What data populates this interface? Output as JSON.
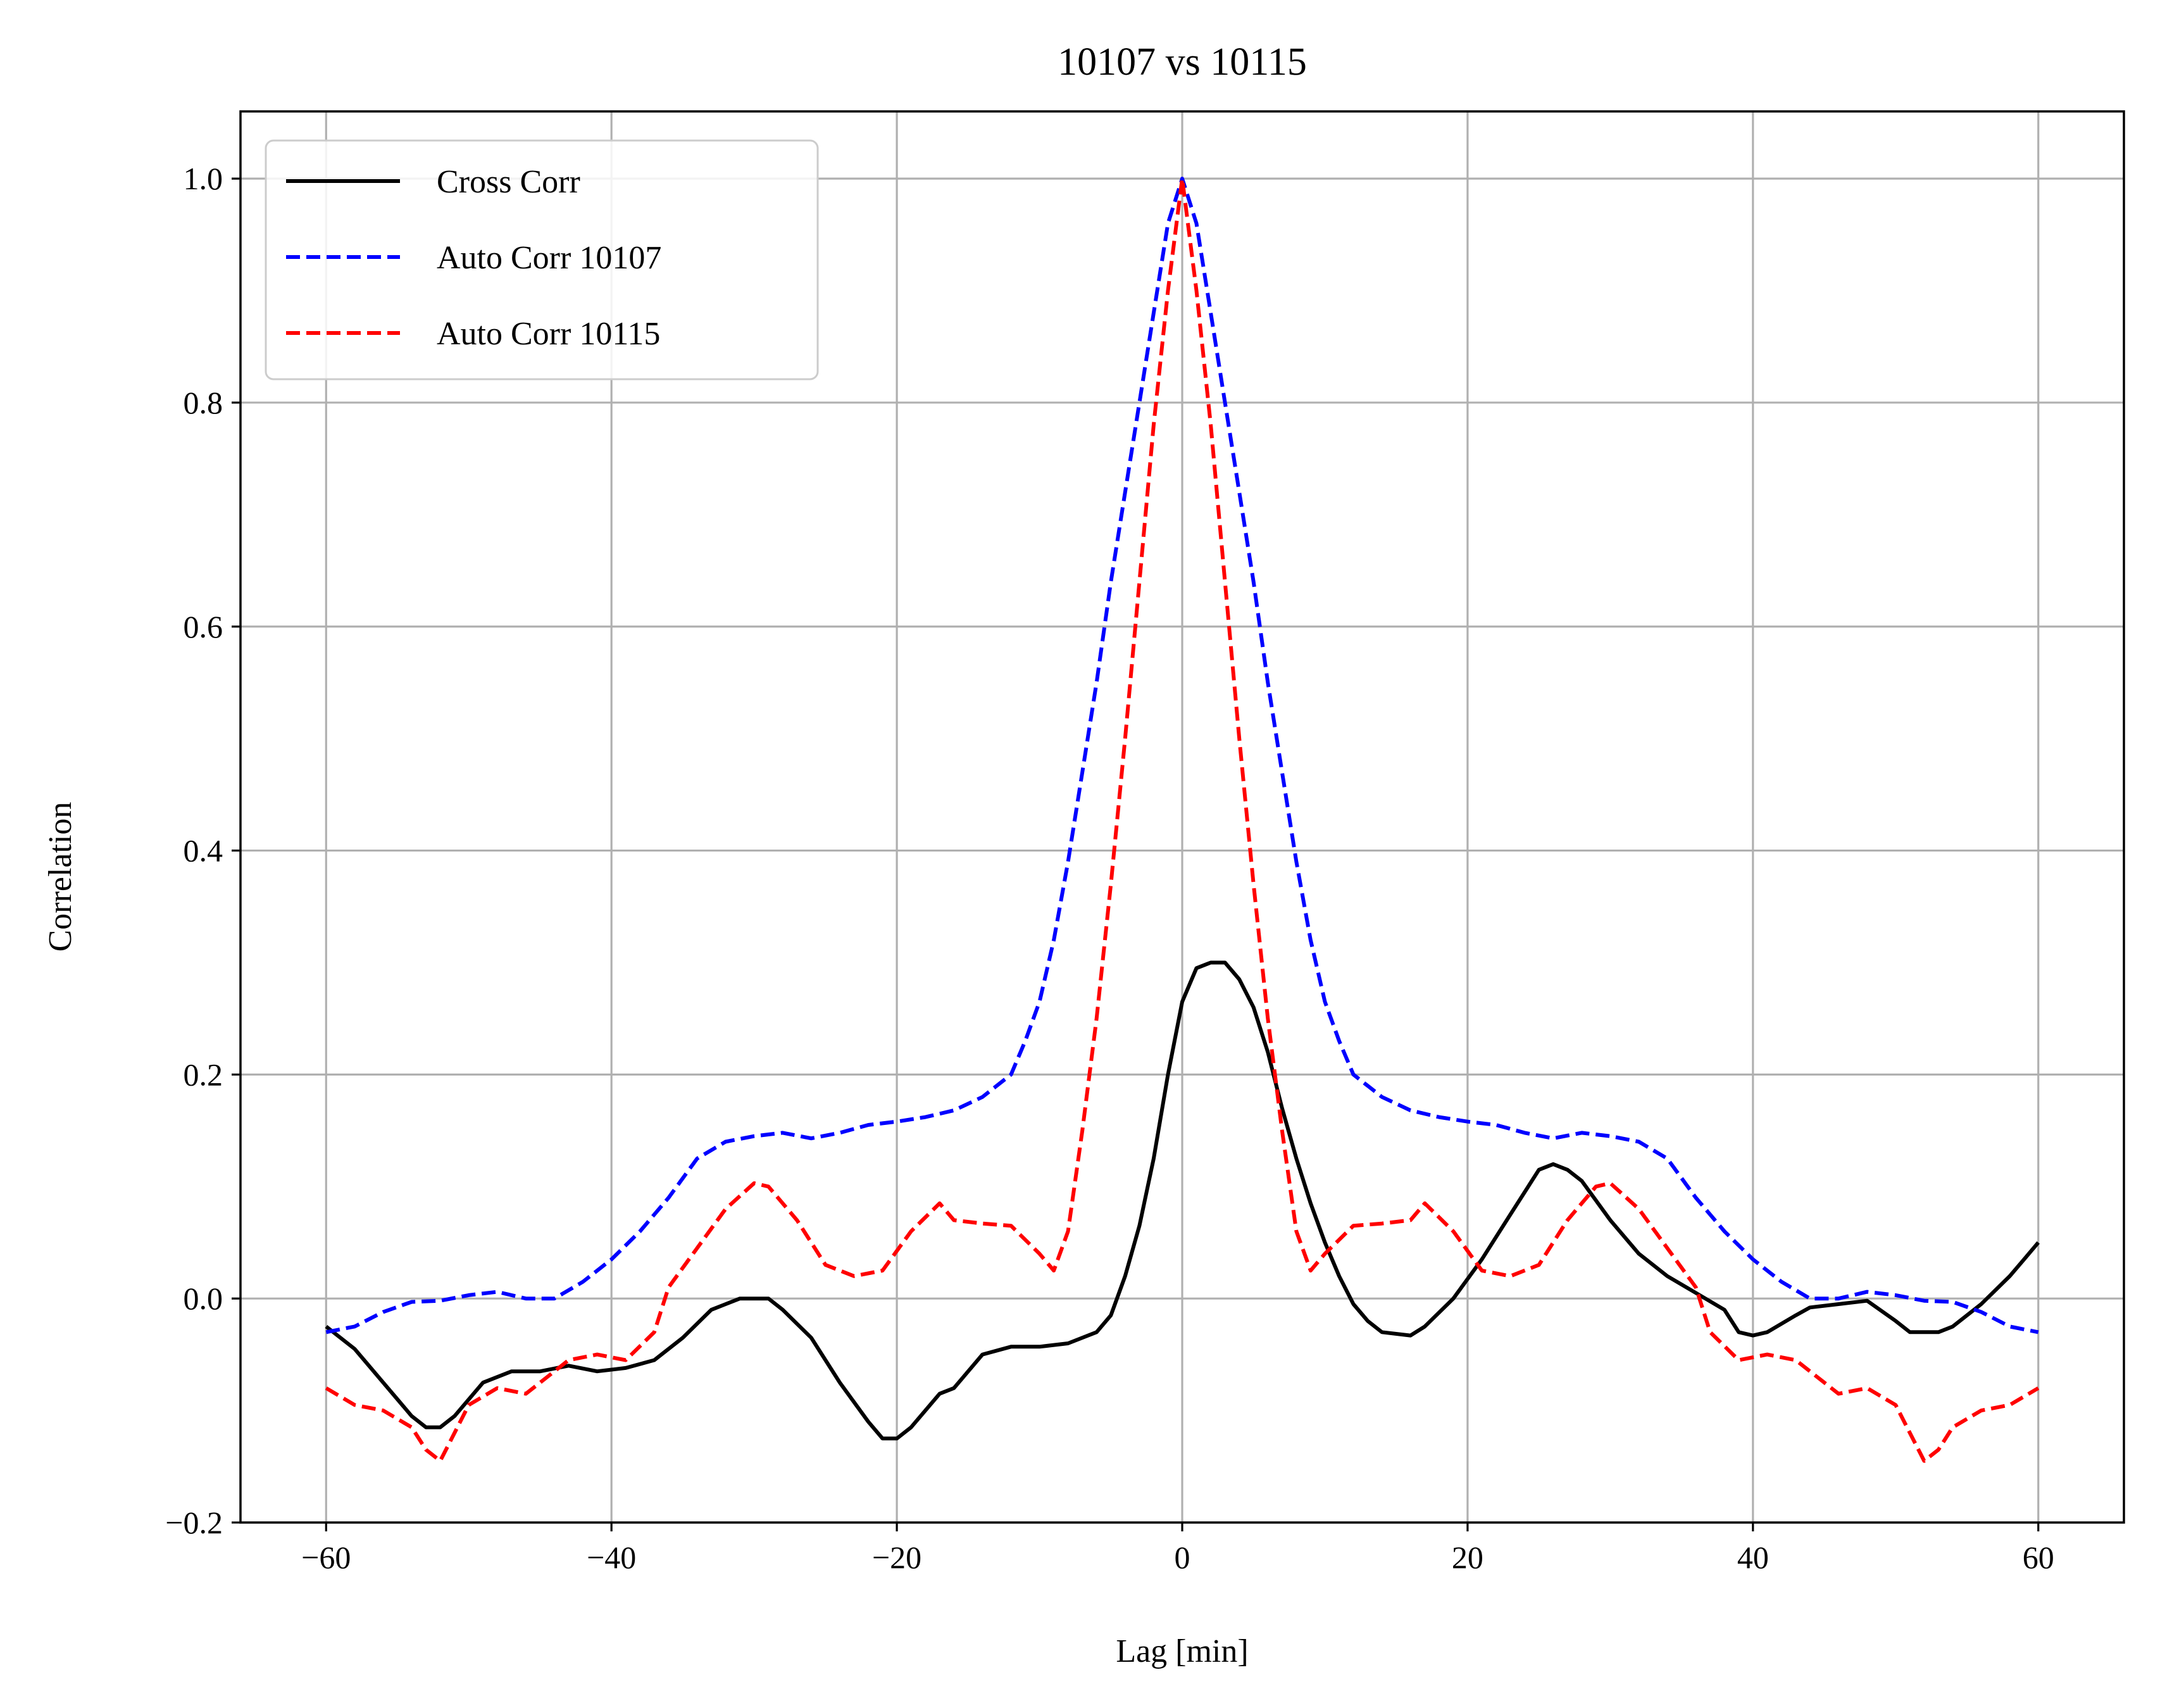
{
  "chart_data": {
    "type": "line",
    "title": "10107 vs 10115",
    "xlabel": "Lag [min]",
    "ylabel": "Correlation",
    "xlim": [
      -66,
      66
    ],
    "ylim": [
      -0.2,
      1.06
    ],
    "xticks": [
      -60,
      -40,
      -20,
      0,
      20,
      40,
      60
    ],
    "yticks": [
      -0.2,
      0.0,
      0.2,
      0.4,
      0.6,
      0.8,
      1.0
    ],
    "xtick_labels": [
      "−60",
      "−40",
      "−20",
      "0",
      "20",
      "40",
      "60"
    ],
    "ytick_labels": [
      "−0.2",
      "0.0",
      "0.2",
      "0.4",
      "0.6",
      "0.8",
      "1.0"
    ],
    "grid": true,
    "legend_position": "upper-left",
    "series": [
      {
        "name": "Cross Corr",
        "color": "#000000",
        "style": "solid",
        "points": [
          [
            -60,
            -0.025
          ],
          [
            -58,
            -0.045
          ],
          [
            -56,
            -0.075
          ],
          [
            -54,
            -0.105
          ],
          [
            -53,
            -0.115
          ],
          [
            -52,
            -0.115
          ],
          [
            -51,
            -0.105
          ],
          [
            -49,
            -0.075
          ],
          [
            -47,
            -0.065
          ],
          [
            -45,
            -0.065
          ],
          [
            -43,
            -0.06
          ],
          [
            -41,
            -0.065
          ],
          [
            -39,
            -0.062
          ],
          [
            -37,
            -0.055
          ],
          [
            -35,
            -0.035
          ],
          [
            -33,
            -0.01
          ],
          [
            -31,
            0.0
          ],
          [
            -29,
            0.0
          ],
          [
            -28,
            -0.01
          ],
          [
            -26,
            -0.035
          ],
          [
            -24,
            -0.075
          ],
          [
            -22,
            -0.11
          ],
          [
            -21,
            -0.125
          ],
          [
            -20,
            -0.125
          ],
          [
            -19,
            -0.115
          ],
          [
            -17,
            -0.085
          ],
          [
            -16,
            -0.08
          ],
          [
            -14,
            -0.05
          ],
          [
            -12,
            -0.043
          ],
          [
            -10,
            -0.043
          ],
          [
            -8,
            -0.04
          ],
          [
            -6,
            -0.03
          ],
          [
            -5,
            -0.015
          ],
          [
            -4,
            0.02
          ],
          [
            -3,
            0.065
          ],
          [
            -2,
            0.125
          ],
          [
            -1,
            0.2
          ],
          [
            0,
            0.265
          ],
          [
            1,
            0.295
          ],
          [
            2,
            0.3
          ],
          [
            3,
            0.3
          ],
          [
            4,
            0.285
          ],
          [
            5,
            0.26
          ],
          [
            6,
            0.22
          ],
          [
            7,
            0.17
          ],
          [
            8,
            0.125
          ],
          [
            9,
            0.085
          ],
          [
            10,
            0.05
          ],
          [
            11,
            0.02
          ],
          [
            12,
            -0.005
          ],
          [
            13,
            -0.02
          ],
          [
            14,
            -0.03
          ],
          [
            16,
            -0.033
          ],
          [
            17,
            -0.025
          ],
          [
            19,
            0.0
          ],
          [
            21,
            0.035
          ],
          [
            23,
            0.075
          ],
          [
            24,
            0.095
          ],
          [
            25,
            0.115
          ],
          [
            26,
            0.12
          ],
          [
            27,
            0.115
          ],
          [
            28,
            0.105
          ],
          [
            30,
            0.07
          ],
          [
            32,
            0.04
          ],
          [
            34,
            0.02
          ],
          [
            36,
            0.005
          ],
          [
            38,
            -0.01
          ],
          [
            39,
            -0.03
          ],
          [
            40,
            -0.033
          ],
          [
            41,
            -0.03
          ],
          [
            43,
            -0.015
          ],
          [
            44,
            -0.008
          ],
          [
            46,
            -0.005
          ],
          [
            48,
            -0.002
          ],
          [
            50,
            -0.02
          ],
          [
            51,
            -0.03
          ],
          [
            53,
            -0.03
          ],
          [
            54,
            -0.025
          ],
          [
            56,
            -0.005
          ],
          [
            58,
            0.02
          ],
          [
            59,
            0.035
          ],
          [
            60,
            0.05
          ]
        ]
      },
      {
        "name": "Auto Corr 10107",
        "color": "#0000ff",
        "style": "dashed",
        "points": [
          [
            -60,
            -0.03
          ],
          [
            -58,
            -0.025
          ],
          [
            -56,
            -0.012
          ],
          [
            -54,
            -0.003
          ],
          [
            -52,
            -0.002
          ],
          [
            -50,
            0.003
          ],
          [
            -48,
            0.006
          ],
          [
            -46,
            0.0
          ],
          [
            -44,
            0.0
          ],
          [
            -42,
            0.015
          ],
          [
            -40,
            0.035
          ],
          [
            -38,
            0.06
          ],
          [
            -36,
            0.09
          ],
          [
            -34,
            0.125
          ],
          [
            -32,
            0.14
          ],
          [
            -30,
            0.145
          ],
          [
            -28,
            0.148
          ],
          [
            -26,
            0.143
          ],
          [
            -24,
            0.148
          ],
          [
            -22,
            0.155
          ],
          [
            -20,
            0.158
          ],
          [
            -18,
            0.162
          ],
          [
            -16,
            0.168
          ],
          [
            -14,
            0.18
          ],
          [
            -12,
            0.2
          ],
          [
            -11,
            0.23
          ],
          [
            -10,
            0.265
          ],
          [
            -9,
            0.32
          ],
          [
            -8,
            0.39
          ],
          [
            -7,
            0.47
          ],
          [
            -6,
            0.55
          ],
          [
            -5,
            0.64
          ],
          [
            -4,
            0.72
          ],
          [
            -3,
            0.8
          ],
          [
            -2,
            0.88
          ],
          [
            -1,
            0.96
          ],
          [
            0,
            1.0
          ],
          [
            1,
            0.96
          ],
          [
            2,
            0.88
          ],
          [
            3,
            0.8
          ],
          [
            4,
            0.72
          ],
          [
            5,
            0.64
          ],
          [
            6,
            0.55
          ],
          [
            7,
            0.47
          ],
          [
            8,
            0.39
          ],
          [
            9,
            0.32
          ],
          [
            10,
            0.265
          ],
          [
            11,
            0.23
          ],
          [
            12,
            0.2
          ],
          [
            14,
            0.18
          ],
          [
            16,
            0.168
          ],
          [
            18,
            0.162
          ],
          [
            20,
            0.158
          ],
          [
            22,
            0.155
          ],
          [
            24,
            0.148
          ],
          [
            26,
            0.143
          ],
          [
            28,
            0.148
          ],
          [
            30,
            0.145
          ],
          [
            32,
            0.14
          ],
          [
            34,
            0.125
          ],
          [
            36,
            0.09
          ],
          [
            38,
            0.06
          ],
          [
            40,
            0.035
          ],
          [
            42,
            0.015
          ],
          [
            44,
            0.0
          ],
          [
            46,
            0.0
          ],
          [
            48,
            0.006
          ],
          [
            50,
            0.003
          ],
          [
            52,
            -0.002
          ],
          [
            54,
            -0.003
          ],
          [
            56,
            -0.012
          ],
          [
            58,
            -0.025
          ],
          [
            60,
            -0.03
          ]
        ]
      },
      {
        "name": "Auto Corr 10115",
        "color": "#ff0000",
        "style": "dashed",
        "points": [
          [
            -60,
            -0.08
          ],
          [
            -58,
            -0.095
          ],
          [
            -56,
            -0.1
          ],
          [
            -54,
            -0.115
          ],
          [
            -53,
            -0.135
          ],
          [
            -52,
            -0.145
          ],
          [
            -51,
            -0.12
          ],
          [
            -50,
            -0.095
          ],
          [
            -48,
            -0.08
          ],
          [
            -46,
            -0.085
          ],
          [
            -45,
            -0.075
          ],
          [
            -43,
            -0.055
          ],
          [
            -41,
            -0.05
          ],
          [
            -39,
            -0.055
          ],
          [
            -37,
            -0.03
          ],
          [
            -36,
            0.01
          ],
          [
            -34,
            0.045
          ],
          [
            -32,
            0.08
          ],
          [
            -30,
            0.103
          ],
          [
            -29,
            0.1
          ],
          [
            -27,
            0.07
          ],
          [
            -25,
            0.03
          ],
          [
            -23,
            0.02
          ],
          [
            -21,
            0.025
          ],
          [
            -19,
            0.06
          ],
          [
            -17,
            0.085
          ],
          [
            -16,
            0.07
          ],
          [
            -14,
            0.067
          ],
          [
            -12,
            0.065
          ],
          [
            -10,
            0.04
          ],
          [
            -9,
            0.025
          ],
          [
            -8,
            0.06
          ],
          [
            -7,
            0.15
          ],
          [
            -6,
            0.25
          ],
          [
            -5,
            0.37
          ],
          [
            -4,
            0.5
          ],
          [
            -3,
            0.64
          ],
          [
            -2,
            0.78
          ],
          [
            -1,
            0.9
          ],
          [
            0,
            1.0
          ],
          [
            1,
            0.9
          ],
          [
            2,
            0.78
          ],
          [
            3,
            0.64
          ],
          [
            4,
            0.5
          ],
          [
            5,
            0.37
          ],
          [
            6,
            0.25
          ],
          [
            7,
            0.15
          ],
          [
            8,
            0.06
          ],
          [
            9,
            0.025
          ],
          [
            10,
            0.04
          ],
          [
            12,
            0.065
          ],
          [
            14,
            0.067
          ],
          [
            16,
            0.07
          ],
          [
            17,
            0.085
          ],
          [
            19,
            0.06
          ],
          [
            21,
            0.025
          ],
          [
            23,
            0.02
          ],
          [
            25,
            0.03
          ],
          [
            27,
            0.07
          ],
          [
            29,
            0.1
          ],
          [
            30,
            0.103
          ],
          [
            32,
            0.08
          ],
          [
            34,
            0.045
          ],
          [
            36,
            0.01
          ],
          [
            37,
            -0.03
          ],
          [
            39,
            -0.055
          ],
          [
            41,
            -0.05
          ],
          [
            43,
            -0.055
          ],
          [
            45,
            -0.075
          ],
          [
            46,
            -0.085
          ],
          [
            48,
            -0.08
          ],
          [
            50,
            -0.095
          ],
          [
            51,
            -0.12
          ],
          [
            52,
            -0.145
          ],
          [
            53,
            -0.135
          ],
          [
            54,
            -0.115
          ],
          [
            56,
            -0.1
          ],
          [
            58,
            -0.095
          ],
          [
            60,
            -0.08
          ]
        ]
      }
    ]
  }
}
